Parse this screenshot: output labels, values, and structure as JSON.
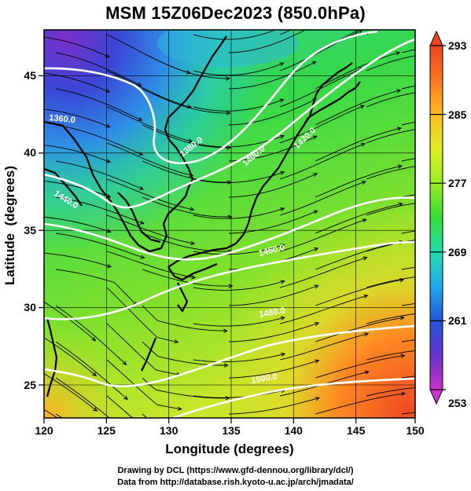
{
  "title": "MSM 15Z06Dec2023 (850.0hPa)",
  "credits": {
    "line1": "Drawing by DCL (https://www.gfd-dennou.org/library/dcl/)",
    "line2": "Data from http://database.rish.kyoto-u.ac.jp/arch/jmadata/"
  },
  "map": {
    "xlabel": "Longitude (degrees)",
    "ylabel": "Latitude  (degrees)",
    "lon_range": [
      120,
      150
    ],
    "lat_range": [
      22.5,
      47.5
    ],
    "lon_ticks": [
      "120",
      "125",
      "130",
      "135",
      "140",
      "145",
      "150"
    ],
    "lat_ticks": [
      "25",
      "30",
      "35",
      "40",
      "45"
    ],
    "contour_labels": [
      "1360.0",
      "1380.0",
      "1400.0",
      "1420.0",
      "1440.0",
      "1460.0",
      "1480.0",
      "1500.0"
    ],
    "contour_color": "#ffffff",
    "streamline_color": "#000000",
    "coastline_color": "#000000"
  },
  "colorbar": {
    "ticks": [
      "293",
      "285",
      "277",
      "269",
      "261",
      "253"
    ],
    "range": [
      253,
      293
    ],
    "colormap": [
      "#cc33cc",
      "#6633cc",
      "#2255dd",
      "#22aaee",
      "#22ddaa",
      "#33dd33",
      "#99ee22",
      "#ddee22",
      "#ffbb22",
      "#ff7722",
      "#ee4422"
    ]
  }
}
